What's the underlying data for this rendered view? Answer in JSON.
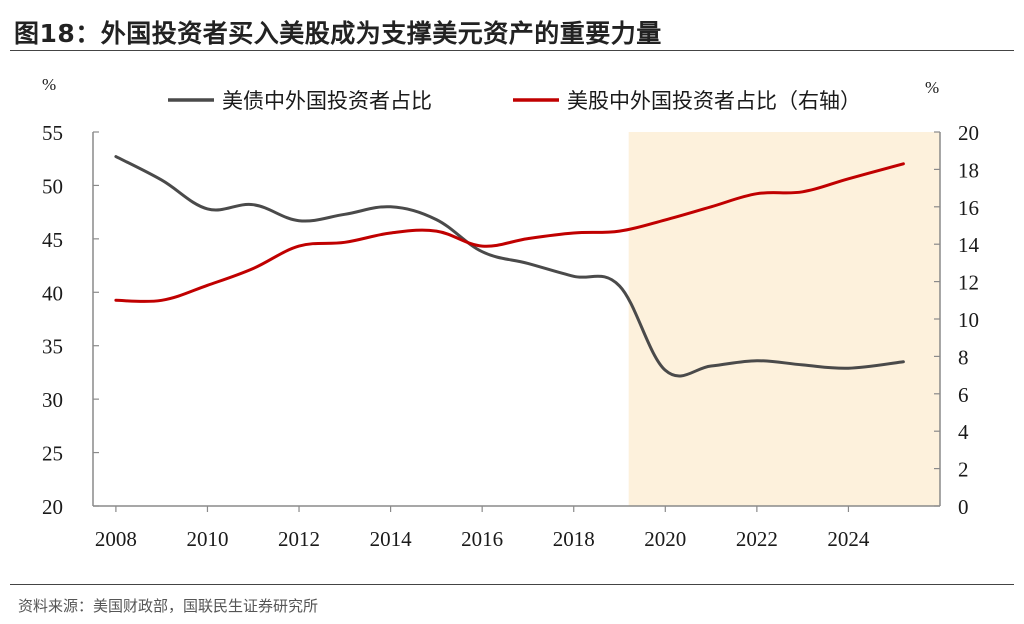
{
  "title": "图18：外国投资者买入美股成为支撑美元资产的重要力量",
  "source": "资料来源：美国财政部，国联民生证券研究所",
  "chart_data": {
    "type": "line",
    "left_axis": {
      "unit": "%",
      "range": [
        20,
        55
      ],
      "ticks": [
        20,
        25,
        30,
        35,
        40,
        45,
        50,
        55
      ]
    },
    "right_axis": {
      "unit": "%",
      "range": [
        0,
        20
      ],
      "ticks": [
        0,
        2,
        4,
        6,
        8,
        10,
        12,
        14,
        16,
        18,
        20
      ]
    },
    "x_axis": {
      "range": [
        2007.5,
        2026.0
      ],
      "ticks": [
        2008,
        2010,
        2012,
        2014,
        2016,
        2018,
        2020,
        2022,
        2024
      ]
    },
    "highlight_region": {
      "x_start": 2019.2,
      "x_end": 2026.0,
      "color": "#fdf1dc"
    },
    "grid": false,
    "legend_position": "top",
    "series": [
      {
        "name": "美债中外国投资者占比",
        "axis": "left",
        "color": "#4a4a4a",
        "x": [
          2008,
          2009,
          2010,
          2011,
          2012,
          2013,
          2014,
          2015,
          2016,
          2017,
          2018,
          2019,
          2020,
          2021,
          2022,
          2023,
          2024,
          2025.2
        ],
        "y": [
          52.7,
          50.5,
          47.8,
          48.2,
          46.7,
          47.3,
          48.0,
          46.8,
          43.8,
          42.7,
          41.5,
          40.6,
          32.7,
          33.1,
          33.6,
          33.2,
          32.9,
          33.5
        ]
      },
      {
        "name": "美股中外国投资者占比（右轴）",
        "axis": "right",
        "color": "#c00000",
        "x": [
          2008,
          2009,
          2010,
          2011,
          2012,
          2013,
          2014,
          2015,
          2016,
          2017,
          2018,
          2019,
          2020,
          2021,
          2022,
          2023,
          2024,
          2025.2
        ],
        "y": [
          11.0,
          11.0,
          11.8,
          12.7,
          13.9,
          14.1,
          14.6,
          14.7,
          13.9,
          14.3,
          14.6,
          14.7,
          15.3,
          16.0,
          16.7,
          16.8,
          17.5,
          18.3
        ]
      }
    ]
  }
}
